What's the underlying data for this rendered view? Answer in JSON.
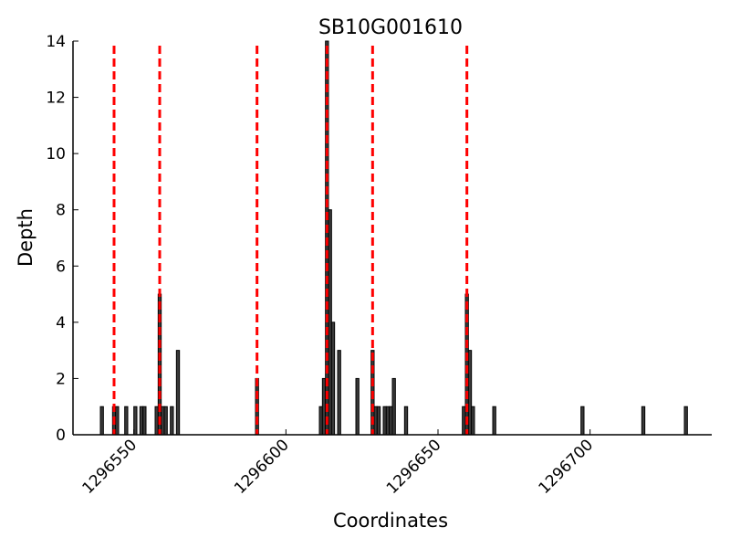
{
  "chart_data": {
    "type": "bar",
    "title": "SB10G001610",
    "xlabel": "Coordinates",
    "ylabel": "Depth",
    "xlim": [
      1296530,
      1296740
    ],
    "ylim": [
      0,
      14
    ],
    "xticks": [
      1296550,
      1296600,
      1296650,
      1296700
    ],
    "xtick_labels": [
      "1296550",
      "1296600",
      "1296650",
      "1296700"
    ],
    "yticks": [
      0,
      2,
      4,
      6,
      8,
      10,
      12,
      14
    ],
    "ytick_labels": [
      "0",
      "2",
      "4",
      "6",
      "8",
      "10",
      "12",
      "14"
    ],
    "grid": false,
    "bar_color": "#3a3a3a",
    "line_color": "#ff0000",
    "bars": [
      {
        "x": 1296539,
        "y": 1
      },
      {
        "x": 1296543,
        "y": 1
      },
      {
        "x": 1296544,
        "y": 1
      },
      {
        "x": 1296547,
        "y": 1
      },
      {
        "x": 1296550,
        "y": 1
      },
      {
        "x": 1296552,
        "y": 1
      },
      {
        "x": 1296553,
        "y": 1
      },
      {
        "x": 1296557,
        "y": 1
      },
      {
        "x": 1296558,
        "y": 5
      },
      {
        "x": 1296559,
        "y": 1
      },
      {
        "x": 1296560,
        "y": 1
      },
      {
        "x": 1296562,
        "y": 1
      },
      {
        "x": 1296564,
        "y": 3
      },
      {
        "x": 1296590,
        "y": 2
      },
      {
        "x": 1296611,
        "y": 1
      },
      {
        "x": 1296612,
        "y": 2
      },
      {
        "x": 1296613,
        "y": 14
      },
      {
        "x": 1296614,
        "y": 8
      },
      {
        "x": 1296615,
        "y": 4
      },
      {
        "x": 1296617,
        "y": 3
      },
      {
        "x": 1296623,
        "y": 2
      },
      {
        "x": 1296628,
        "y": 3
      },
      {
        "x": 1296629,
        "y": 1
      },
      {
        "x": 1296630,
        "y": 1
      },
      {
        "x": 1296632,
        "y": 1
      },
      {
        "x": 1296633,
        "y": 1
      },
      {
        "x": 1296634,
        "y": 1
      },
      {
        "x": 1296635,
        "y": 2
      },
      {
        "x": 1296639,
        "y": 1
      },
      {
        "x": 1296658,
        "y": 1
      },
      {
        "x": 1296659,
        "y": 5
      },
      {
        "x": 1296660,
        "y": 3
      },
      {
        "x": 1296661,
        "y": 1
      },
      {
        "x": 1296668,
        "y": 1
      },
      {
        "x": 1296697,
        "y": 1
      },
      {
        "x": 1296717,
        "y": 1
      },
      {
        "x": 1296731,
        "y": 1
      }
    ],
    "vlines": [
      1296543.5,
      1296558.5,
      1296590.5,
      1296613.5,
      1296628.5,
      1296659.5
    ]
  }
}
